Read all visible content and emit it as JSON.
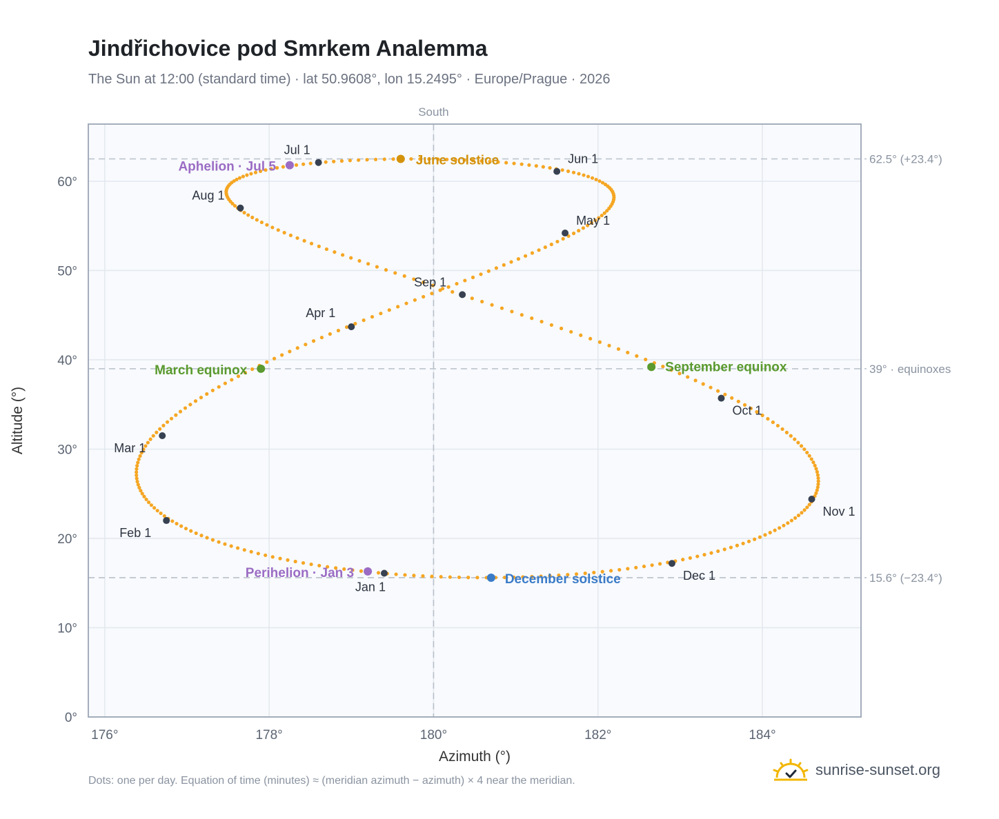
{
  "header": {
    "title": "Jindřichovice pod Smrkem Analemma",
    "subtitle": "The Sun at 12:00 (standard time) · lat 50.9608°, lon 15.2495° · Europe/Prague · 2026"
  },
  "footer": {
    "note": "Dots: one per day. Equation of time (minutes) ≈ (meridian azimuth − azimuth) × 4 near the meridian.",
    "brand": "sunrise-sunset.org",
    "brand_icon": "sun-logo-icon"
  },
  "chart_data": {
    "type": "scatter",
    "xlabel": "Azimuth (°)",
    "ylabel": "Altitude (°)",
    "xlim": [
      175.8,
      185.2
    ],
    "ylim": [
      0,
      66.4
    ],
    "xticks": [
      176,
      178,
      180,
      182,
      184
    ],
    "yticks": [
      0,
      10,
      20,
      30,
      40,
      50,
      60
    ],
    "xtick_labels": [
      "176°",
      "178°",
      "180°",
      "182°",
      "184°"
    ],
    "ytick_labels": [
      "0°",
      "10°",
      "20°",
      "30°",
      "40°",
      "50°",
      "60°"
    ],
    "grid": true,
    "colors": {
      "analemma": "#f5a623",
      "month_marker": "#374151",
      "solstice_june": "#d4920b",
      "solstice_december": "#3a7bc8",
      "equinox": "#5a9a2e",
      "aphelion_perihelion": "#9b6cc4",
      "reference_line": "#b8c0ca"
    },
    "meridian": {
      "azimuth": 180,
      "label": "South"
    },
    "reference_lines": [
      {
        "altitude": 62.5,
        "label": "62.5° (+23.4°)"
      },
      {
        "altitude": 39,
        "label": "39° · equinoxes"
      },
      {
        "altitude": 15.6,
        "label": "15.6° (−23.4°)"
      }
    ],
    "month_markers": [
      {
        "label": "Jan 1",
        "azimuth": 179.4,
        "altitude": 16.1
      },
      {
        "label": "Feb 1",
        "azimuth": 176.75,
        "altitude": 22.0
      },
      {
        "label": "Mar 1",
        "azimuth": 176.7,
        "altitude": 31.5
      },
      {
        "label": "Apr 1",
        "azimuth": 179.0,
        "altitude": 43.7
      },
      {
        "label": "May 1",
        "azimuth": 181.6,
        "altitude": 54.2
      },
      {
        "label": "Jun 1",
        "azimuth": 181.5,
        "altitude": 61.1
      },
      {
        "label": "Jul 1",
        "azimuth": 178.6,
        "altitude": 62.1
      },
      {
        "label": "Aug 1",
        "azimuth": 177.65,
        "altitude": 57.0
      },
      {
        "label": "Sep 1",
        "azimuth": 180.35,
        "altitude": 47.3
      },
      {
        "label": "Oct 1",
        "azimuth": 183.5,
        "altitude": 35.7
      },
      {
        "label": "Nov 1",
        "azimuth": 184.6,
        "altitude": 24.4
      },
      {
        "label": "Dec 1",
        "azimuth": 182.9,
        "altitude": 17.2
      }
    ],
    "events": [
      {
        "label": "June solstice",
        "azimuth": 179.6,
        "altitude": 62.5,
        "color": "#d4920b"
      },
      {
        "label": "December solstice",
        "azimuth": 180.7,
        "altitude": 15.6,
        "color": "#3a7bc8"
      },
      {
        "label": "March equinox",
        "azimuth": 177.9,
        "altitude": 39.0,
        "color": "#5a9a2e"
      },
      {
        "label": "September equinox",
        "azimuth": 182.65,
        "altitude": 39.2,
        "color": "#5a9a2e"
      },
      {
        "label": "Aphelion · Jul 5",
        "azimuth": 178.25,
        "altitude": 61.8,
        "color": "#9b6cc4"
      },
      {
        "label": "Perihelion · Jan 3",
        "azimuth": 179.2,
        "altitude": 16.3,
        "color": "#9b6cc4"
      }
    ],
    "series": [
      {
        "name": "",
        "points_per": "day",
        "year": 2026,
        "latitude": 50.9608,
        "longitude": 15.2495,
        "clock_time": "12:00"
      }
    ]
  }
}
